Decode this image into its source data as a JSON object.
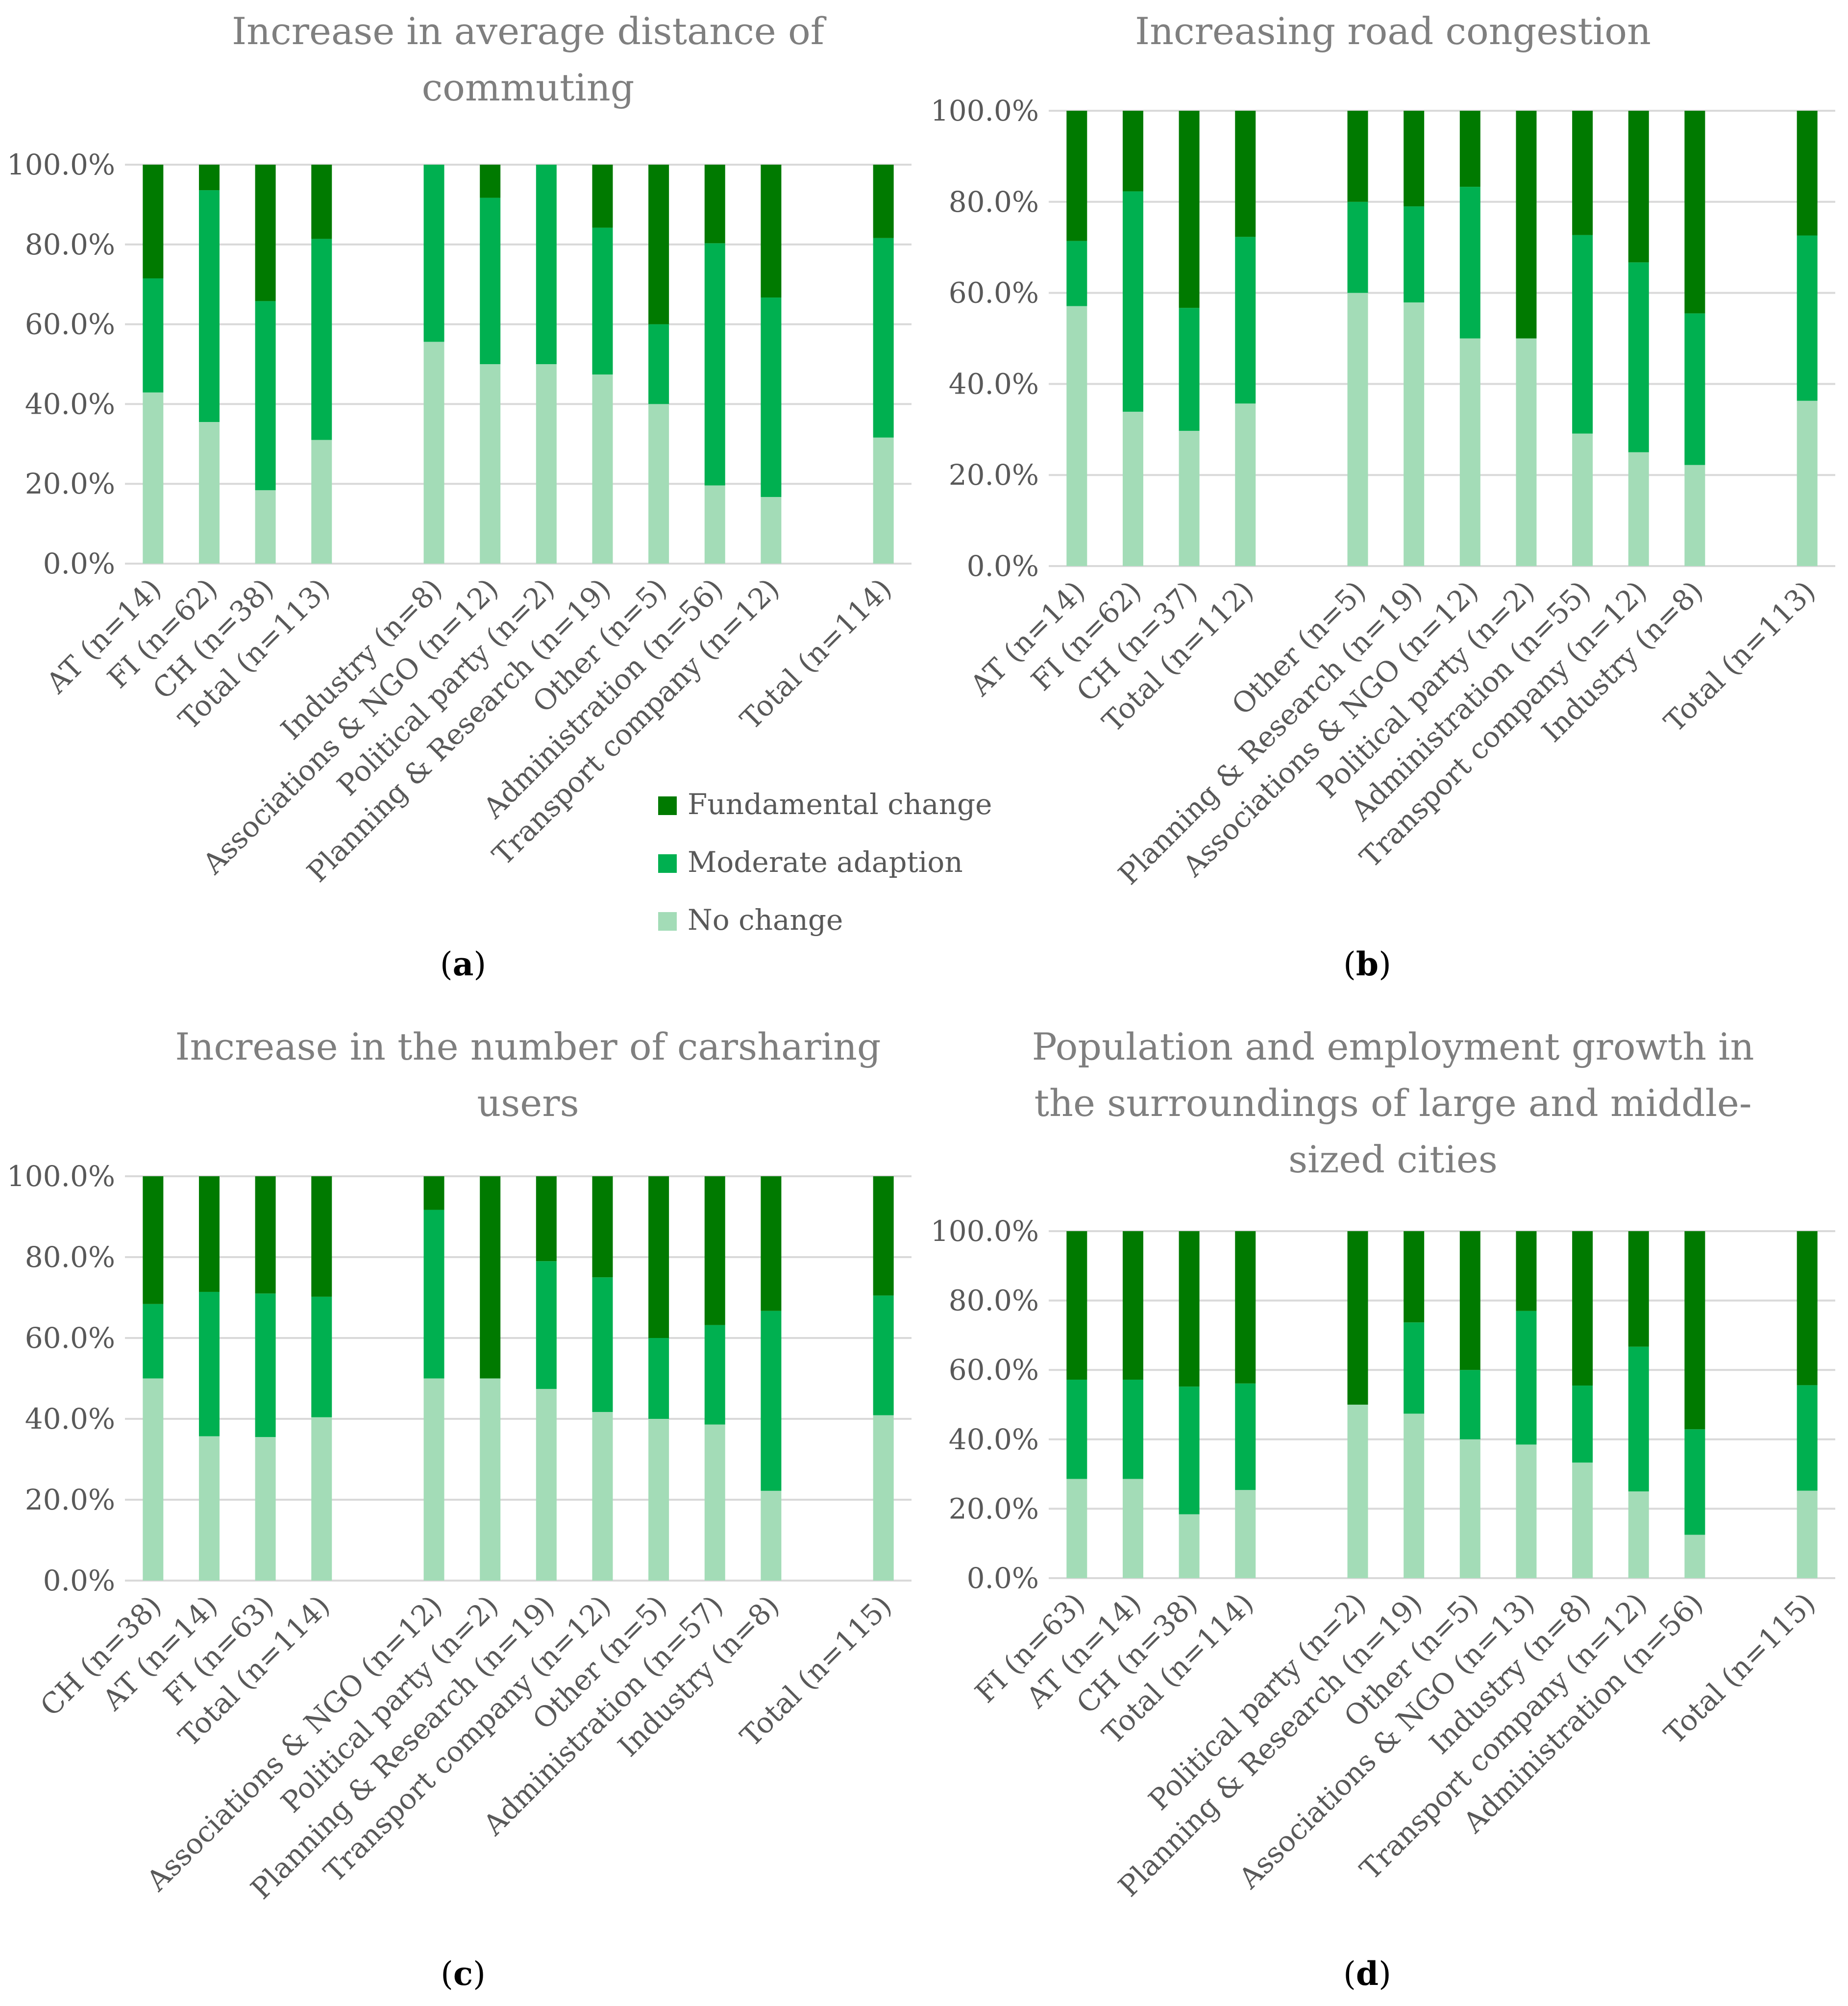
{
  "legend": {
    "items": [
      {
        "label": "Fundamental change",
        "color": "#007a00"
      },
      {
        "label": "Moderate adaption",
        "color": "#00b050"
      },
      {
        "label": "No change",
        "color": "#a3dcb7"
      }
    ]
  },
  "colors": {
    "fundamental": "#007a00",
    "moderate": "#00b050",
    "no_change": "#a3dcb7"
  },
  "chart_data": [
    {
      "type": "bar",
      "stacked": true,
      "caption": "a",
      "title": "Increase in average distance of commuting",
      "yticks": [
        "0.0%",
        "20.0%",
        "40.0%",
        "60.0%",
        "80.0%",
        "100.0%"
      ],
      "ylim": [
        0,
        100
      ],
      "categories": [
        "AT (n=14)",
        "FI (n=62)",
        "CH (n=38)",
        "Total (n=113)",
        "",
        "Industry (n=8)",
        "Associations & NGO (n=12)",
        "Political party (n=2)",
        "Planning & Research (n=19)",
        "Other (n=5)",
        "Administration (n=56)",
        "Transport company (n=12)",
        "",
        "Total (n=114)"
      ],
      "series": [
        {
          "name": "No change",
          "values": [
            42.9,
            35.5,
            18.4,
            31.0,
            null,
            55.6,
            50.0,
            50.0,
            47.4,
            40.0,
            19.6,
            16.7,
            null,
            31.6
          ]
        },
        {
          "name": "Moderate adaption",
          "values": [
            28.6,
            58.1,
            47.4,
            50.4,
            null,
            44.4,
            41.7,
            50.0,
            36.8,
            20.0,
            60.7,
            50.0,
            null,
            50.0
          ]
        },
        {
          "name": "Fundamental change",
          "values": [
            28.5,
            6.4,
            34.2,
            18.6,
            null,
            0.0,
            8.3,
            0.0,
            15.8,
            40.0,
            19.7,
            33.3,
            null,
            18.4
          ]
        }
      ]
    },
    {
      "type": "bar",
      "stacked": true,
      "caption": "b",
      "title": "Increasing road congestion",
      "yticks": [
        "0.0%",
        "20.0%",
        "40.0%",
        "60.0%",
        "80.0%",
        "100.0%"
      ],
      "ylim": [
        0,
        100
      ],
      "categories": [
        "AT (n=14)",
        "FI (n=62)",
        "CH (n=37)",
        "Total (n=112)",
        "",
        "Other (n=5)",
        "Planning & Research (n=19)",
        "Associations & NGO (n=12)",
        "Political party (n=2)",
        "Administration (n=55)",
        "Transport company (n=12)",
        "Industry (n=8)",
        "",
        "Total (n=113)"
      ],
      "series": [
        {
          "name": "No change",
          "values": [
            57.1,
            33.9,
            29.7,
            35.7,
            null,
            60.0,
            57.9,
            50.0,
            50.0,
            29.1,
            25.0,
            22.2,
            null,
            36.3
          ]
        },
        {
          "name": "Moderate adaption",
          "values": [
            14.3,
            48.4,
            27.0,
            36.6,
            null,
            20.0,
            21.1,
            33.3,
            0.0,
            43.6,
            41.7,
            33.3,
            null,
            36.3
          ]
        },
        {
          "name": "Fundamental change",
          "values": [
            28.6,
            17.7,
            43.3,
            27.7,
            null,
            20.0,
            21.0,
            16.7,
            50.0,
            27.3,
            33.3,
            44.5,
            null,
            27.4
          ]
        }
      ]
    },
    {
      "type": "bar",
      "stacked": true,
      "caption": "c",
      "title": "Increase in the number of carsharing users",
      "yticks": [
        "0.0%",
        "20.0%",
        "40.0%",
        "60.0%",
        "80.0%",
        "100.0%"
      ],
      "ylim": [
        0,
        100
      ],
      "categories": [
        "CH (n=38)",
        "AT (n=14)",
        "FI (n=63)",
        "Total (n=114)",
        "",
        "Associations & NGO (n=12)",
        "Political party (n=2)",
        "Planning & Research (n=19)",
        "Transport company (n=12)",
        "Other (n=5)",
        "Administration (n=57)",
        "Industry (n=8)",
        "",
        "Total (n=115)"
      ],
      "series": [
        {
          "name": "No change",
          "values": [
            50.0,
            35.7,
            35.5,
            40.4,
            null,
            50.0,
            50.0,
            47.4,
            41.7,
            40.0,
            38.6,
            22.2,
            null,
            40.9
          ]
        },
        {
          "name": "Moderate adaption",
          "values": [
            18.4,
            35.7,
            35.5,
            29.8,
            null,
            41.7,
            0.0,
            31.6,
            33.3,
            20.0,
            24.6,
            44.5,
            null,
            29.6
          ]
        },
        {
          "name": "Fundamental change",
          "values": [
            31.6,
            28.6,
            29.0,
            29.8,
            null,
            8.3,
            50.0,
            21.0,
            25.0,
            40.0,
            36.8,
            33.3,
            null,
            29.5
          ]
        }
      ]
    },
    {
      "type": "bar",
      "stacked": true,
      "caption": "d",
      "title": "Population and employment growth in the surroundings of large and middle-sized cities",
      "title_lines": [
        "Population and employment growth in",
        "the surroundings of large and middle-",
        "sized cities"
      ],
      "yticks": [
        "0.0%",
        "20.0%",
        "40.0%",
        "60.0%",
        "80.0%",
        "100.0%"
      ],
      "ylim": [
        0,
        100
      ],
      "categories": [
        "FI (n=63)",
        "AT (n=14)",
        "CH (n=38)",
        "Total (n=114)",
        "",
        "Political party (n=2)",
        "Planning & Research (n=19)",
        "Other (n=5)",
        "Associations & NGO (n=13)",
        "Industry (n=8)",
        "Transport company (n=12)",
        "Administration (n=56)",
        "",
        "Total (n=115)"
      ],
      "series": [
        {
          "name": "No change",
          "values": [
            28.6,
            28.6,
            18.4,
            25.4,
            null,
            50.0,
            47.4,
            40.0,
            38.5,
            33.3,
            25.0,
            12.5,
            null,
            25.2
          ]
        },
        {
          "name": "Moderate adaption",
          "values": [
            28.6,
            28.6,
            36.8,
            30.7,
            null,
            0.0,
            26.3,
            20.0,
            38.5,
            22.2,
            41.7,
            30.4,
            null,
            30.4
          ]
        },
        {
          "name": "Fundamental change",
          "values": [
            42.8,
            42.8,
            44.8,
            43.9,
            null,
            50.0,
            26.3,
            40.0,
            23.0,
            44.5,
            33.3,
            57.1,
            null,
            44.4
          ]
        }
      ]
    }
  ]
}
